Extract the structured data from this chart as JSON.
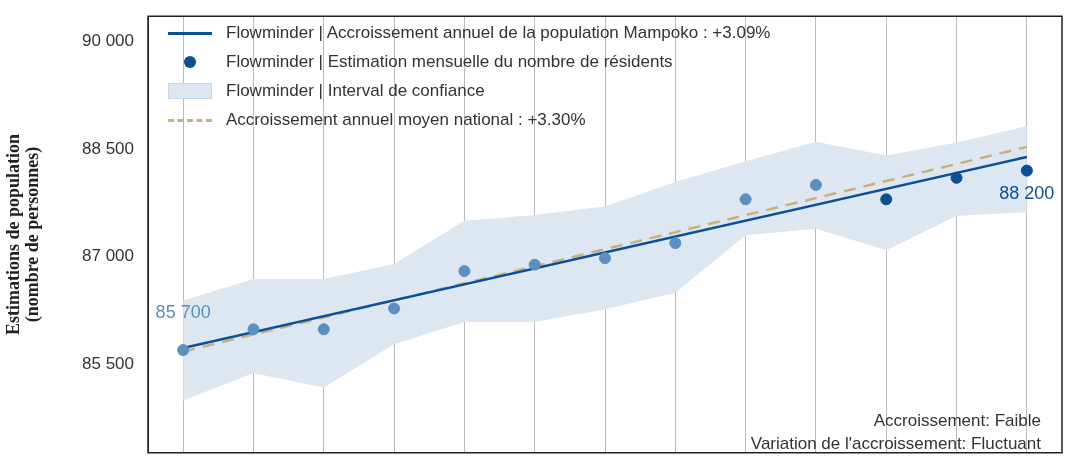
{
  "chart_data": {
    "type": "line",
    "ylabel": "Estimations de population\n(nombre de personnes)",
    "categories": [
      null,
      null,
      null,
      null,
      null,
      null,
      null,
      null,
      null,
      null,
      null,
      null,
      null
    ],
    "ylim": [
      84270,
      90350
    ],
    "yticks": [
      {
        "value": 85500,
        "label": "85 500"
      },
      {
        "value": 87000,
        "label": "87 000"
      },
      {
        "value": 88500,
        "label": "88 500"
      },
      {
        "value": 90000,
        "label": "90 000"
      }
    ],
    "grid": "x",
    "legend": "top left",
    "series": [
      {
        "type": "line",
        "name": "Flowminder | Accroissement annuel de la population Mampoko : +3.09%",
        "color": "#0b4f96",
        "line_style": "solid",
        "values": [
          85730,
          null,
          null,
          null,
          null,
          null,
          null,
          null,
          null,
          null,
          null,
          null,
          88390
        ]
      },
      {
        "type": "scatter",
        "name": "Flowminder | Estimation mensuelle du nombre de résidents",
        "color": "#0b4f96",
        "marker": "circle",
        "colors": [
          "#5b8fc0",
          "#5b8fc0",
          "#5b8fc0",
          "#5b8fc0",
          "#5b8fc0",
          "#5b8fc0",
          "#5b8fc0",
          "#5b8fc0",
          "#5b8fc0",
          "#5b8fc0",
          "#0b4f96",
          "#0b4f96",
          "#0b4f96"
        ],
        "values": [
          85700,
          85990,
          85990,
          86280,
          86800,
          86890,
          86980,
          87190,
          87800,
          88000,
          87800,
          88100,
          88200
        ],
        "value_labels": [
          "85 700",
          null,
          null,
          null,
          null,
          null,
          null,
          null,
          null,
          null,
          null,
          null,
          "88 200"
        ]
      },
      {
        "type": "area",
        "name": "Flowminder | Interval de confiance",
        "color": "#dce7f1",
        "values": [
          null,
          null,
          null,
          null,
          null,
          null,
          null,
          null,
          null,
          null,
          null,
          null,
          null
        ],
        "lower": [
          85000,
          85380,
          85180,
          85780,
          86090,
          86090,
          86270,
          86500,
          87300,
          87390,
          87090,
          87570,
          87620
        ],
        "upper": [
          86390,
          86690,
          86690,
          86900,
          87500,
          87580,
          87700,
          88040,
          88330,
          88600,
          88410,
          88590,
          88820
        ]
      },
      {
        "type": "line",
        "name": "Accroissement annuel moyen national : +3.30%",
        "color": "#c9b07f",
        "line_style": "dashed",
        "values": [
          85680,
          null,
          null,
          null,
          null,
          null,
          null,
          null,
          null,
          null,
          null,
          null,
          88530
        ]
      }
    ],
    "annotations": [
      "Accroissement: Faible",
      "Variation de l'accroissement: Fluctuant"
    ]
  }
}
